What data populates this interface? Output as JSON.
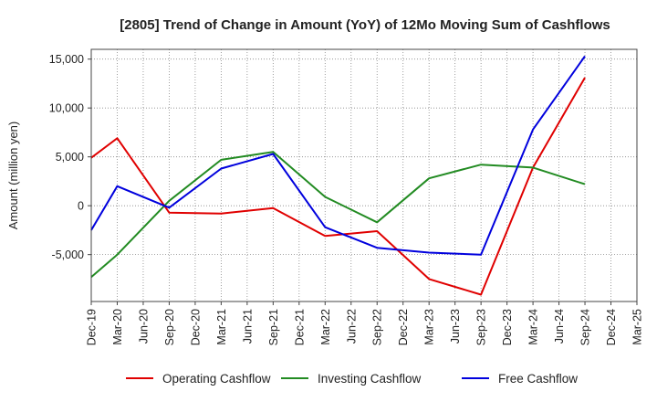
{
  "chart_data": {
    "type": "line",
    "title": "[2805]  Trend of Change in Amount (YoY) of 12Mo Moving Sum of Cashflows",
    "xlabel": "",
    "ylabel": "Amount (million yen)",
    "ylim": [
      -9800,
      16000
    ],
    "yticks": [
      15000,
      10000,
      5000,
      0,
      -5000
    ],
    "ytick_labels": [
      "15,000",
      "10,000",
      "5,000",
      "0",
      "-5,000"
    ],
    "categories": [
      "Dec-19",
      "Mar-20",
      "Jun-20",
      "Sep-20",
      "Dec-20",
      "Mar-21",
      "Jun-21",
      "Sep-21",
      "Dec-21",
      "Mar-22",
      "Jun-22",
      "Sep-22",
      "Dec-22",
      "Mar-23",
      "Jun-23",
      "Sep-23",
      "Dec-23",
      "Mar-24",
      "Jun-24",
      "Sep-24",
      "Dec-24",
      "Mar-25"
    ],
    "grid": true,
    "legend": "bottom",
    "series": [
      {
        "name": "Operating Cashflow",
        "color": "#e00000",
        "values": [
          4900,
          6900,
          null,
          -700,
          null,
          -800,
          null,
          -250,
          null,
          -3100,
          null,
          -2600,
          null,
          -7500,
          null,
          -9100,
          null,
          3900,
          null,
          13100,
          null,
          null
        ]
      },
      {
        "name": "Investing Cashflow",
        "color": "#228B22",
        "values": [
          -7300,
          -5000,
          null,
          500,
          null,
          4700,
          null,
          5500,
          null,
          900,
          null,
          -1700,
          null,
          2800,
          null,
          4200,
          null,
          3900,
          null,
          2200,
          null,
          null
        ]
      },
      {
        "name": "Free Cashflow",
        "color": "#0000dd",
        "values": [
          -2500,
          2000,
          null,
          -200,
          null,
          3800,
          null,
          5300,
          null,
          -2200,
          null,
          -4300,
          null,
          -4800,
          null,
          -5000,
          null,
          7800,
          null,
          15300,
          null,
          null
        ]
      }
    ]
  }
}
